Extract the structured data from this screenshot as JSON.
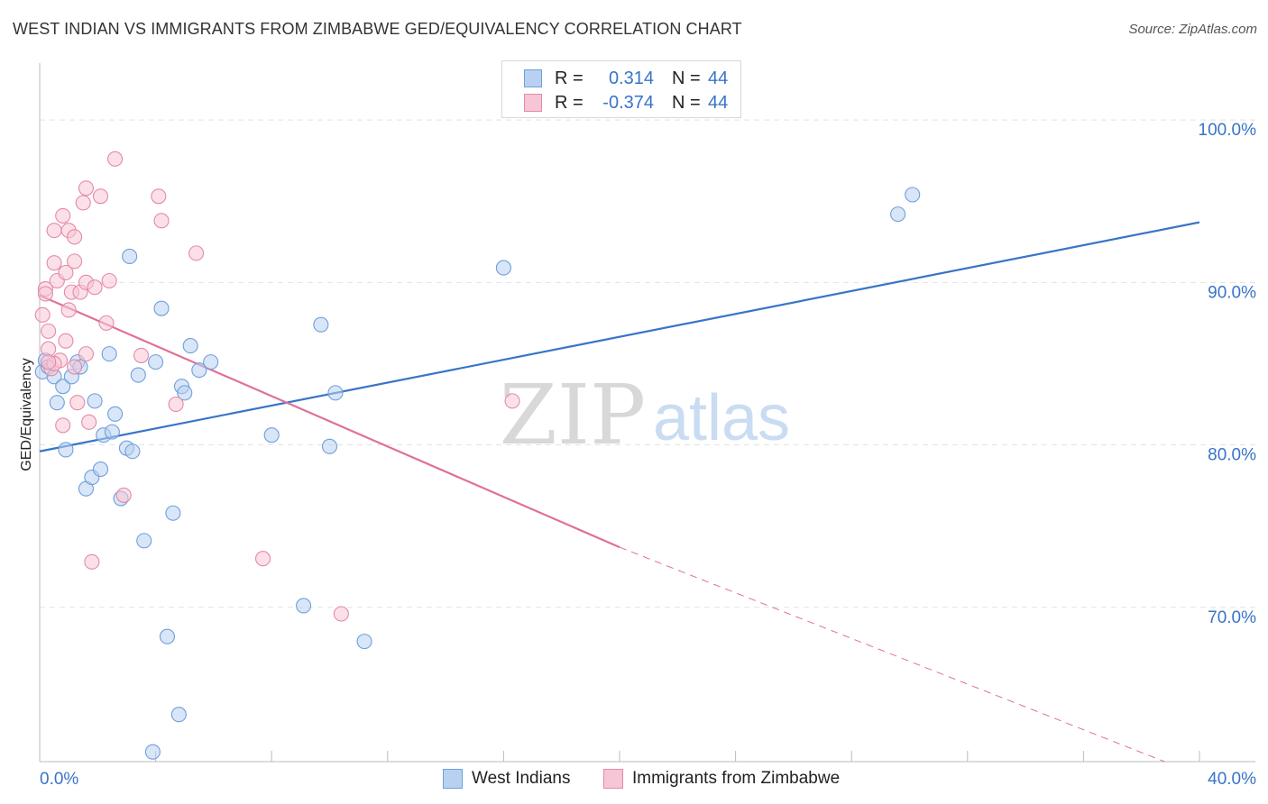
{
  "title": "WEST INDIAN VS IMMIGRANTS FROM ZIMBABWE GED/EQUIVALENCY CORRELATION CHART",
  "source": "Source: ZipAtlas.com",
  "watermark": {
    "zip": "ZIP",
    "atlas": "atlas"
  },
  "legend": {
    "r_label": "R =",
    "n_label": "N =",
    "series": [
      {
        "name": "West Indians",
        "r": "0.314",
        "n": "44",
        "color": "#6f9fdc",
        "fill": "#b9d1f1"
      },
      {
        "name": "Immigrants from Zimbabwe",
        "r": "-0.374",
        "n": "44",
        "color": "#e489a8",
        "fill": "#f7c6d6"
      }
    ]
  },
  "chart_data": {
    "type": "scatter",
    "xlabel": "",
    "ylabel": "GED/Equivalency",
    "xlim": [
      0,
      40
    ],
    "ylim": [
      60.5,
      103.5
    ],
    "x_tick_labels": [
      {
        "value": 0,
        "label": "0.0%"
      },
      {
        "value": 40,
        "label": "40.0%"
      }
    ],
    "y_tick_labels": [
      {
        "value": 100,
        "label": "100.0%"
      },
      {
        "value": 90,
        "label": "90.0%"
      },
      {
        "value": 80,
        "label": "80.0%"
      },
      {
        "value": 70,
        "label": "70.0%"
      }
    ],
    "series": [
      {
        "name": "West Indians",
        "color": "#3874c8",
        "points": [
          [
            0.1,
            84.5
          ],
          [
            0.2,
            85.2
          ],
          [
            0.3,
            84.8
          ],
          [
            0.5,
            84.2
          ],
          [
            0.6,
            82.6
          ],
          [
            0.8,
            83.6
          ],
          [
            0.9,
            79.7
          ],
          [
            1.1,
            84.2
          ],
          [
            1.3,
            85.1
          ],
          [
            1.4,
            84.8
          ],
          [
            1.6,
            77.3
          ],
          [
            1.8,
            78.0
          ],
          [
            1.9,
            82.7
          ],
          [
            2.1,
            78.5
          ],
          [
            2.2,
            80.6
          ],
          [
            2.4,
            85.6
          ],
          [
            2.5,
            80.8
          ],
          [
            2.6,
            81.9
          ],
          [
            2.8,
            76.7
          ],
          [
            3.0,
            79.8
          ],
          [
            3.1,
            91.6
          ],
          [
            3.2,
            79.6
          ],
          [
            3.4,
            84.3
          ],
          [
            3.6,
            74.1
          ],
          [
            3.9,
            61.1
          ],
          [
            4.0,
            85.1
          ],
          [
            4.2,
            88.4
          ],
          [
            4.4,
            68.2
          ],
          [
            4.6,
            75.8
          ],
          [
            4.8,
            63.4
          ],
          [
            4.9,
            83.6
          ],
          [
            5.0,
            83.2
          ],
          [
            5.2,
            86.1
          ],
          [
            5.5,
            84.6
          ],
          [
            5.9,
            85.1
          ],
          [
            8.0,
            80.6
          ],
          [
            9.1,
            70.1
          ],
          [
            9.7,
            87.4
          ],
          [
            10.0,
            79.9
          ],
          [
            10.2,
            83.2
          ],
          [
            11.2,
            67.9
          ],
          [
            16.0,
            90.9
          ],
          [
            29.6,
            94.2
          ],
          [
            30.1,
            95.4
          ]
        ],
        "trendline": {
          "x0": 0,
          "y0": 79.6,
          "x1": 40,
          "y1": 93.7
        }
      },
      {
        "name": "Immigrants from Zimbabwe",
        "color": "#e0709a",
        "points": [
          [
            0.1,
            88.0
          ],
          [
            0.2,
            89.6
          ],
          [
            0.2,
            89.3
          ],
          [
            0.3,
            87.0
          ],
          [
            0.3,
            85.9
          ],
          [
            0.4,
            84.7
          ],
          [
            0.5,
            91.2
          ],
          [
            0.5,
            93.2
          ],
          [
            0.6,
            90.1
          ],
          [
            0.7,
            85.2
          ],
          [
            0.8,
            94.1
          ],
          [
            0.8,
            81.2
          ],
          [
            0.9,
            86.4
          ],
          [
            0.9,
            90.6
          ],
          [
            1.0,
            88.3
          ],
          [
            1.0,
            93.2
          ],
          [
            1.1,
            89.4
          ],
          [
            1.2,
            92.8
          ],
          [
            1.2,
            91.3
          ],
          [
            1.3,
            82.6
          ],
          [
            1.4,
            89.4
          ],
          [
            1.5,
            94.9
          ],
          [
            1.6,
            95.8
          ],
          [
            1.6,
            85.6
          ],
          [
            1.6,
            90.0
          ],
          [
            1.7,
            81.4
          ],
          [
            1.8,
            72.8
          ],
          [
            1.9,
            89.7
          ],
          [
            2.1,
            95.3
          ],
          [
            2.3,
            87.5
          ],
          [
            2.4,
            90.1
          ],
          [
            2.6,
            97.6
          ],
          [
            2.9,
            76.9
          ],
          [
            3.5,
            85.5
          ],
          [
            4.1,
            95.3
          ],
          [
            4.2,
            93.8
          ],
          [
            4.7,
            82.5
          ],
          [
            5.4,
            91.8
          ],
          [
            7.7,
            73.0
          ],
          [
            10.4,
            69.6
          ],
          [
            16.3,
            82.7
          ],
          [
            0.5,
            85.0
          ],
          [
            1.2,
            84.8
          ],
          [
            0.3,
            85.1
          ]
        ],
        "trendline": {
          "x0": 0,
          "y0": 89.2,
          "x1": 20,
          "y1": 73.7,
          "dashed_to_x": 38.8,
          "dashed_to_y": 60.5
        }
      }
    ]
  }
}
